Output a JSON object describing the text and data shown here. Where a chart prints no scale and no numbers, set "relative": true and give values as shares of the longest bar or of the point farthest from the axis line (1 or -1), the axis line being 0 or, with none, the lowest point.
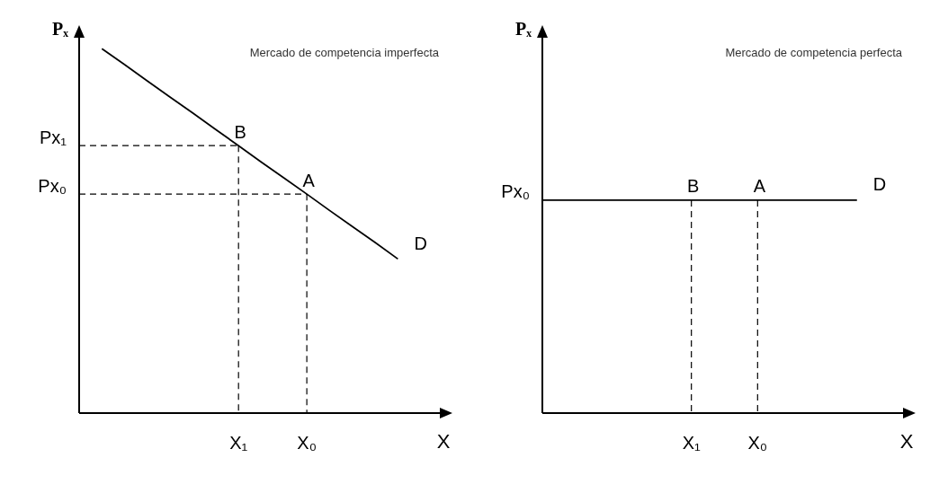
{
  "chart_data": [
    {
      "type": "line",
      "title": "Mercado de competencia imperfecta",
      "xlabel": "X",
      "ylabel": "Pₓ",
      "relative": true,
      "marker": "none",
      "categories": [
        null,
        null,
        null,
        null,
        null,
        null,
        null,
        "X₁",
        null,
        null,
        "X₀",
        null,
        null,
        null,
        null,
        null,
        null
      ],
      "series": [
        {
          "name": "D",
          "color": "#000000",
          "values": [
            null,
            1,
            0.956,
            0.911,
            0.867,
            0.823,
            0.778,
            0.734,
            0.689,
            0.645,
            0.601,
            0.556,
            0.512,
            0.468,
            0.423,
            null,
            null
          ]
        },
        {
          "name": "Px₁",
          "color": "#000000",
          "line_style": "dashed",
          "values": [
            0.734,
            0.734,
            0.734,
            0.734,
            0.734,
            0.734,
            0.734,
            0.734,
            null,
            null,
            null,
            null,
            null,
            null,
            null,
            null,
            null
          ]
        },
        {
          "name": "Px₀",
          "color": "#000000",
          "line_style": "dashed",
          "values": [
            0.601,
            0.601,
            0.601,
            0.601,
            0.601,
            0.601,
            0.601,
            0.601,
            0.601,
            0.601,
            0.601,
            null,
            null,
            null,
            null,
            null,
            null
          ]
        },
        {
          "color": "#000000",
          "line_style": "dashed",
          "x": [
            "X₁",
            "X₁"
          ],
          "values": [
            0.734,
            0
          ]
        },
        {
          "color": "#000000",
          "line_style": "dashed",
          "x": [
            "X₀",
            "X₀"
          ],
          "values": [
            0.601,
            0
          ]
        }
      ],
      "annotations": [
        {
          "text": "B",
          "x": "X₁",
          "y": 0.734
        },
        {
          "text": "A",
          "x": "X₀",
          "y": 0.601
        }
      ]
    },
    {
      "type": "line",
      "title": "Mercado de competencia perfecta",
      "xlabel": "X",
      "ylabel": "Pₓ",
      "relative": true,
      "marker": "none",
      "categories": [
        null,
        null,
        null,
        null,
        null,
        null,
        null,
        null,
        null,
        "X₁",
        null,
        null,
        null,
        "X₀",
        null,
        null,
        null,
        null,
        null,
        null,
        null,
        null,
        null
      ],
      "series": [
        {
          "name": "D",
          "color": "#000000",
          "values": [
            1,
            1,
            1,
            1,
            1,
            1,
            1,
            1,
            1,
            1,
            1,
            1,
            1,
            1,
            1,
            1,
            1,
            1,
            1,
            1,
            null,
            null,
            null
          ]
        },
        {
          "color": "#000000",
          "line_style": "dashed",
          "x": [
            "X₁",
            "X₁"
          ],
          "values": [
            1,
            0
          ]
        },
        {
          "color": "#000000",
          "line_style": "dashed",
          "x": [
            "X₀",
            "X₀"
          ],
          "values": [
            1,
            0
          ]
        }
      ],
      "annotations": [
        {
          "text": "B",
          "x": "X₁",
          "y": 1
        },
        {
          "text": "A",
          "x": "X₀",
          "y": 1
        },
        "Px₀"
      ]
    }
  ]
}
